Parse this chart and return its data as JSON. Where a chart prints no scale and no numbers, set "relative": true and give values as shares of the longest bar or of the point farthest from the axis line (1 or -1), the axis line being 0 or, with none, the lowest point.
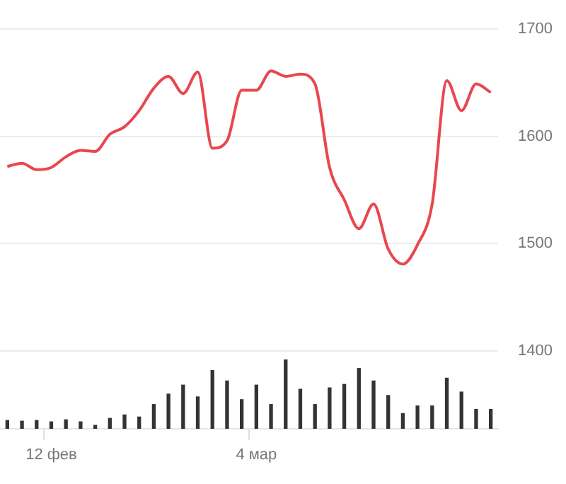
{
  "chart_data": [
    {
      "type": "line",
      "categories": [
        null,
        null,
        null,
        null,
        null,
        null,
        null,
        null,
        null,
        null,
        null,
        null,
        null,
        null,
        null,
        null,
        null,
        null,
        null,
        null,
        null,
        null,
        null,
        null,
        null,
        null,
        null,
        null,
        null,
        null,
        null,
        null,
        null,
        null
      ],
      "series": [
        {
          "color": "#e8474f",
          "values": [
            1572,
            1575,
            1569,
            1571,
            1581,
            1587,
            1586,
            1602,
            1609,
            1624,
            1645,
            1656,
            1640,
            1660,
            1589,
            1596,
            1643,
            1643,
            1661,
            1656,
            1658,
            1649,
            1571,
            1541,
            1514,
            1537,
            1495,
            1481,
            1499,
            1537,
            1652,
            1624,
            1649,
            1641
          ]
        }
      ],
      "ylim": [
        1400,
        1700
      ],
      "yticks": [
        1400,
        1500,
        1600,
        1700
      ],
      "grid": "y",
      "marker": "none",
      "line_style": "solid",
      "tick_labels": "y",
      "legend": false
    },
    {
      "type": "bar",
      "relative": true,
      "categories": [
        null,
        null,
        null,
        "12 фев",
        null,
        null,
        null,
        null,
        null,
        null,
        null,
        null,
        null,
        null,
        null,
        null,
        null,
        "4 мар",
        null,
        null,
        null,
        null,
        null,
        null,
        null,
        null,
        null,
        null,
        null,
        null,
        null,
        null,
        null,
        null
      ],
      "series": [
        {
          "color": "#333333",
          "values": [
            0.12,
            0.11,
            0.12,
            0.1,
            0.13,
            0.1,
            0.05,
            0.15,
            0.2,
            0.17,
            0.35,
            0.5,
            0.63,
            0.46,
            0.84,
            0.69,
            0.42,
            0.63,
            0.35,
            1,
            0.57,
            0.35,
            0.59,
            0.64,
            0.87,
            0.69,
            0.48,
            0.22,
            0.33,
            0.33,
            0.73,
            0.53,
            0.28,
            0.28
          ]
        }
      ],
      "tick_labels": "x",
      "legend": false
    }
  ]
}
